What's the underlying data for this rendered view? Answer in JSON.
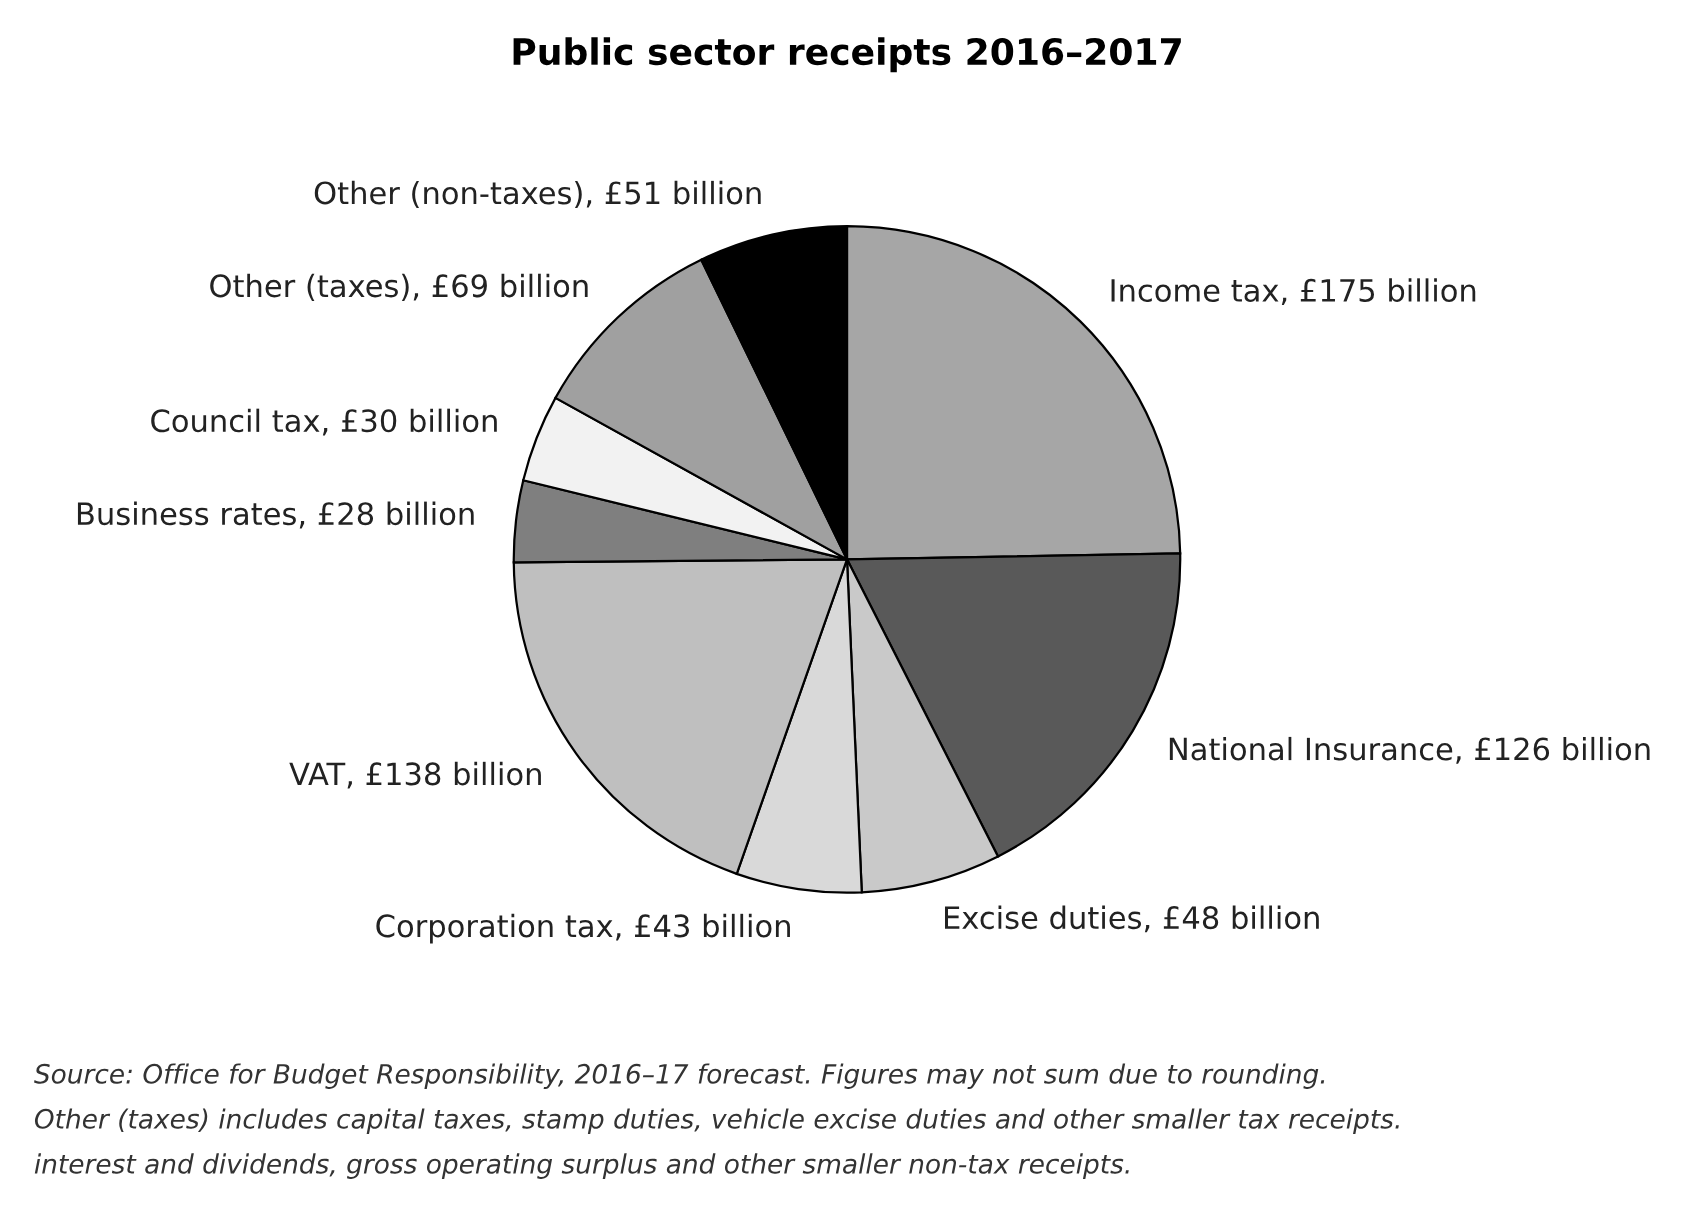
{
  "chart_data": {
    "type": "pie",
    "title": "Public sector receipts 2016–2017",
    "categories": [
      "Income tax, £175 billion",
      "National Insurance, £126 billion",
      "Excise duties, £48 billion",
      "Corporation tax, £43 billion",
      "VAT, £138 billion",
      "Business rates, £28 billion",
      "Council tax, £30 billion",
      "Other (taxes), £69 billion",
      "Other (non-taxes), £51 billion"
    ],
    "values": [
      175,
      126,
      48,
      43,
      138,
      28,
      30,
      69,
      51
    ],
    "colors": [
      "#a6a6a6",
      "#595959",
      "#c9c9c9",
      "#d9d9d9",
      "#bfbfbf",
      "#7f7f7f",
      "#f2f2f2",
      "#a0a0a0",
      "#000000"
    ],
    "annotations": [
      "Source: Office for Budget Responsibility, 2016–17 forecast. Figures may not sum due to rounding.",
      "Other (taxes) includes capital taxes, stamp duties, vehicle excise duties and other smaller tax receipts.",
      "interest and dividends, gross operating surplus and other smaller non-tax receipts."
    ]
  }
}
